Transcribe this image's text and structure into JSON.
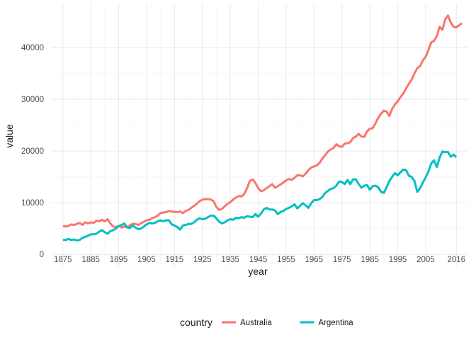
{
  "chart_data": {
    "type": "line",
    "title": "",
    "xlabel": "year",
    "ylabel": "value",
    "xlim": [
      1871,
      2020
    ],
    "ylim": [
      -2300,
      48500
    ],
    "grid": true,
    "legend_placement": "bottom",
    "legend_title": "country",
    "x_ticks": [
      1875,
      1885,
      1895,
      1905,
      1915,
      1925,
      1935,
      1945,
      1955,
      1965,
      1975,
      1985,
      1995,
      2005,
      2016
    ],
    "x_tick_labels": [
      "1875",
      "1885",
      "1895",
      "1905",
      "1915",
      "1925",
      "1935",
      "1945",
      "1955",
      "1965",
      "1975",
      "1985",
      "1995",
      "2005",
      "2016"
    ],
    "y_ticks": [
      0,
      10000,
      20000,
      30000,
      40000
    ],
    "y_tick_labels": [
      "0",
      "10000",
      "20000",
      "30000",
      "40000"
    ],
    "series": [
      {
        "name": "Australia",
        "color": "#F8766D",
        "points": [
          [
            1875,
            5500
          ],
          [
            1876,
            5400
          ],
          [
            1877,
            5500
          ],
          [
            1878,
            5800
          ],
          [
            1879,
            5700
          ],
          [
            1880,
            5900
          ],
          [
            1881,
            6100
          ],
          [
            1882,
            5700
          ],
          [
            1883,
            6200
          ],
          [
            1884,
            6000
          ],
          [
            1885,
            6200
          ],
          [
            1886,
            6100
          ],
          [
            1887,
            6500
          ],
          [
            1888,
            6400
          ],
          [
            1889,
            6700
          ],
          [
            1890,
            6400
          ],
          [
            1891,
            6800
          ],
          [
            1892,
            6000
          ],
          [
            1893,
            5400
          ],
          [
            1894,
            5300
          ],
          [
            1895,
            5500
          ],
          [
            1896,
            5200
          ],
          [
            1897,
            5400
          ],
          [
            1898,
            5200
          ],
          [
            1899,
            5600
          ],
          [
            1900,
            5900
          ],
          [
            1901,
            5900
          ],
          [
            1902,
            5700
          ],
          [
            1903,
            6000
          ],
          [
            1904,
            6300
          ],
          [
            1905,
            6600
          ],
          [
            1906,
            6700
          ],
          [
            1907,
            7000
          ],
          [
            1908,
            7200
          ],
          [
            1909,
            7500
          ],
          [
            1910,
            8000
          ],
          [
            1911,
            8100
          ],
          [
            1912,
            8200
          ],
          [
            1913,
            8400
          ],
          [
            1914,
            8300
          ],
          [
            1915,
            8200
          ],
          [
            1916,
            8200
          ],
          [
            1917,
            8300
          ],
          [
            1918,
            8000
          ],
          [
            1919,
            8400
          ],
          [
            1920,
            8600
          ],
          [
            1921,
            9000
          ],
          [
            1922,
            9400
          ],
          [
            1923,
            9800
          ],
          [
            1924,
            10300
          ],
          [
            1925,
            10600
          ],
          [
            1926,
            10700
          ],
          [
            1927,
            10700
          ],
          [
            1928,
            10600
          ],
          [
            1929,
            10300
          ],
          [
            1930,
            9200
          ],
          [
            1931,
            8600
          ],
          [
            1932,
            8800
          ],
          [
            1933,
            9300
          ],
          [
            1934,
            9800
          ],
          [
            1935,
            10100
          ],
          [
            1936,
            10600
          ],
          [
            1937,
            11000
          ],
          [
            1938,
            11300
          ],
          [
            1939,
            11200
          ],
          [
            1940,
            11700
          ],
          [
            1941,
            12800
          ],
          [
            1942,
            14200
          ],
          [
            1943,
            14500
          ],
          [
            1944,
            13800
          ],
          [
            1945,
            12800
          ],
          [
            1946,
            12200
          ],
          [
            1947,
            12400
          ],
          [
            1948,
            12800
          ],
          [
            1949,
            13200
          ],
          [
            1950,
            13600
          ],
          [
            1951,
            12900
          ],
          [
            1952,
            13200
          ],
          [
            1953,
            13500
          ],
          [
            1954,
            13900
          ],
          [
            1955,
            14300
          ],
          [
            1956,
            14600
          ],
          [
            1957,
            14400
          ],
          [
            1958,
            14800
          ],
          [
            1959,
            15300
          ],
          [
            1960,
            15300
          ],
          [
            1961,
            15100
          ],
          [
            1962,
            15600
          ],
          [
            1963,
            16300
          ],
          [
            1964,
            16800
          ],
          [
            1965,
            17000
          ],
          [
            1966,
            17200
          ],
          [
            1967,
            17700
          ],
          [
            1968,
            18500
          ],
          [
            1969,
            19200
          ],
          [
            1970,
            19900
          ],
          [
            1971,
            20300
          ],
          [
            1972,
            20600
          ],
          [
            1973,
            21300
          ],
          [
            1974,
            20900
          ],
          [
            1975,
            20800
          ],
          [
            1976,
            21400
          ],
          [
            1977,
            21500
          ],
          [
            1978,
            21700
          ],
          [
            1979,
            22500
          ],
          [
            1980,
            22800
          ],
          [
            1981,
            23300
          ],
          [
            1982,
            22800
          ],
          [
            1983,
            22700
          ],
          [
            1984,
            23800
          ],
          [
            1985,
            24300
          ],
          [
            1986,
            24400
          ],
          [
            1987,
            25300
          ],
          [
            1988,
            26400
          ],
          [
            1989,
            27200
          ],
          [
            1990,
            27800
          ],
          [
            1991,
            27600
          ],
          [
            1992,
            26800
          ],
          [
            1993,
            28100
          ],
          [
            1994,
            29000
          ],
          [
            1995,
            29600
          ],
          [
            1996,
            30400
          ],
          [
            1997,
            31100
          ],
          [
            1998,
            32100
          ],
          [
            1999,
            33000
          ],
          [
            2000,
            33800
          ],
          [
            2001,
            35000
          ],
          [
            2002,
            36000
          ],
          [
            2003,
            36400
          ],
          [
            2004,
            37500
          ],
          [
            2005,
            38200
          ],
          [
            2006,
            39500
          ],
          [
            2007,
            41000
          ],
          [
            2008,
            41300
          ],
          [
            2009,
            42200
          ],
          [
            2010,
            44000
          ],
          [
            2011,
            43400
          ],
          [
            2012,
            45400
          ],
          [
            2013,
            46200
          ],
          [
            2014,
            44800
          ],
          [
            2015,
            44000
          ],
          [
            2016,
            43900
          ],
          [
            2017,
            44300
          ],
          [
            2018,
            44700
          ]
        ]
      },
      {
        "name": "Argentina",
        "color": "#00BFC4",
        "points": [
          [
            1875,
            2800
          ],
          [
            1876,
            2800
          ],
          [
            1877,
            3000
          ],
          [
            1878,
            2800
          ],
          [
            1879,
            2900
          ],
          [
            1880,
            2700
          ],
          [
            1881,
            2800
          ],
          [
            1882,
            3200
          ],
          [
            1883,
            3400
          ],
          [
            1884,
            3600
          ],
          [
            1885,
            3900
          ],
          [
            1886,
            3900
          ],
          [
            1887,
            4000
          ],
          [
            1888,
            4400
          ],
          [
            1889,
            4700
          ],
          [
            1890,
            4300
          ],
          [
            1891,
            4000
          ],
          [
            1892,
            4500
          ],
          [
            1893,
            4700
          ],
          [
            1894,
            5000
          ],
          [
            1895,
            5500
          ],
          [
            1896,
            5700
          ],
          [
            1897,
            6000
          ],
          [
            1898,
            5300
          ],
          [
            1899,
            5100
          ],
          [
            1900,
            5600
          ],
          [
            1901,
            5200
          ],
          [
            1902,
            4900
          ],
          [
            1903,
            5000
          ],
          [
            1904,
            5400
          ],
          [
            1905,
            5800
          ],
          [
            1906,
            6100
          ],
          [
            1907,
            6000
          ],
          [
            1908,
            6100
          ],
          [
            1909,
            6400
          ],
          [
            1910,
            6600
          ],
          [
            1911,
            6400
          ],
          [
            1912,
            6600
          ],
          [
            1913,
            6600
          ],
          [
            1914,
            5800
          ],
          [
            1915,
            5600
          ],
          [
            1916,
            5300
          ],
          [
            1917,
            4800
          ],
          [
            1918,
            5600
          ],
          [
            1919,
            5700
          ],
          [
            1920,
            5900
          ],
          [
            1921,
            5900
          ],
          [
            1922,
            6200
          ],
          [
            1923,
            6700
          ],
          [
            1924,
            7000
          ],
          [
            1925,
            6800
          ],
          [
            1926,
            6900
          ],
          [
            1927,
            7200
          ],
          [
            1928,
            7500
          ],
          [
            1929,
            7500
          ],
          [
            1930,
            7000
          ],
          [
            1931,
            6300
          ],
          [
            1932,
            6000
          ],
          [
            1933,
            6200
          ],
          [
            1934,
            6600
          ],
          [
            1935,
            6800
          ],
          [
            1936,
            6700
          ],
          [
            1937,
            7100
          ],
          [
            1938,
            7000
          ],
          [
            1939,
            7200
          ],
          [
            1940,
            7100
          ],
          [
            1941,
            7400
          ],
          [
            1942,
            7300
          ],
          [
            1943,
            7200
          ],
          [
            1944,
            7800
          ],
          [
            1945,
            7300
          ],
          [
            1946,
            7900
          ],
          [
            1947,
            8700
          ],
          [
            1948,
            9000
          ],
          [
            1949,
            8700
          ],
          [
            1950,
            8700
          ],
          [
            1951,
            8500
          ],
          [
            1952,
            7800
          ],
          [
            1953,
            8200
          ],
          [
            1954,
            8400
          ],
          [
            1955,
            8800
          ],
          [
            1956,
            9000
          ],
          [
            1957,
            9300
          ],
          [
            1958,
            9700
          ],
          [
            1959,
            8900
          ],
          [
            1960,
            9400
          ],
          [
            1961,
            9900
          ],
          [
            1962,
            9500
          ],
          [
            1963,
            9000
          ],
          [
            1964,
            9900
          ],
          [
            1965,
            10500
          ],
          [
            1966,
            10500
          ],
          [
            1967,
            10700
          ],
          [
            1968,
            11100
          ],
          [
            1969,
            11900
          ],
          [
            1970,
            12300
          ],
          [
            1971,
            12700
          ],
          [
            1972,
            12800
          ],
          [
            1973,
            13300
          ],
          [
            1974,
            14100
          ],
          [
            1975,
            14000
          ],
          [
            1976,
            13600
          ],
          [
            1977,
            14400
          ],
          [
            1978,
            13600
          ],
          [
            1979,
            14500
          ],
          [
            1980,
            14500
          ],
          [
            1981,
            13600
          ],
          [
            1982,
            12900
          ],
          [
            1983,
            13300
          ],
          [
            1984,
            13400
          ],
          [
            1985,
            12500
          ],
          [
            1986,
            13200
          ],
          [
            1987,
            13300
          ],
          [
            1988,
            13000
          ],
          [
            1989,
            12100
          ],
          [
            1990,
            11900
          ],
          [
            1991,
            13000
          ],
          [
            1992,
            14200
          ],
          [
            1993,
            15000
          ],
          [
            1994,
            15700
          ],
          [
            1995,
            15300
          ],
          [
            1996,
            15900
          ],
          [
            1997,
            16400
          ],
          [
            1998,
            16300
          ],
          [
            1999,
            15200
          ],
          [
            2000,
            15000
          ],
          [
            2001,
            14200
          ],
          [
            2002,
            12100
          ],
          [
            2003,
            12800
          ],
          [
            2004,
            13900
          ],
          [
            2005,
            14900
          ],
          [
            2006,
            16000
          ],
          [
            2007,
            17600
          ],
          [
            2008,
            18200
          ],
          [
            2009,
            16900
          ],
          [
            2010,
            18700
          ],
          [
            2011,
            19900
          ],
          [
            2012,
            19800
          ],
          [
            2013,
            19800
          ],
          [
            2014,
            18900
          ],
          [
            2015,
            19300
          ],
          [
            2016,
            18800
          ]
        ]
      }
    ]
  }
}
